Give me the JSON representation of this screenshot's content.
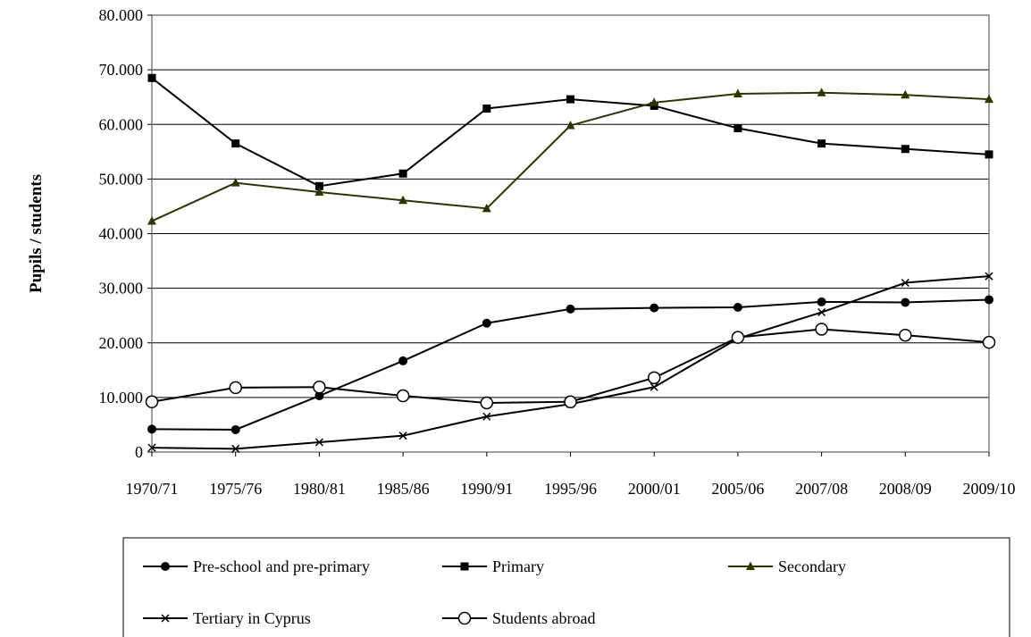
{
  "chart_data": {
    "type": "line",
    "title": "",
    "xlabel": "",
    "ylabel": "Pupils / students",
    "ylim": [
      0,
      80000
    ],
    "yticks": [
      {
        "value": 0,
        "label": "0"
      },
      {
        "value": 10000,
        "label": "10.000"
      },
      {
        "value": 20000,
        "label": "20.000"
      },
      {
        "value": 30000,
        "label": "30.000"
      },
      {
        "value": 40000,
        "label": "40.000"
      },
      {
        "value": 50000,
        "label": "50.000"
      },
      {
        "value": 60000,
        "label": "60.000"
      },
      {
        "value": 70000,
        "label": "70.000"
      },
      {
        "value": 80000,
        "label": "80.000"
      }
    ],
    "categories": [
      "1970/71",
      "1975/76",
      "1980/81",
      "1985/86",
      "1990/91",
      "1995/96",
      "2000/01",
      "2005/06",
      "2007/08",
      "2008/09",
      "2009/10"
    ],
    "grid": true,
    "legend_position": "bottom",
    "series": [
      {
        "name": "Pre-school and pre-primary",
        "marker": "circle-filled",
        "color": "#000000",
        "values": [
          4200,
          4100,
          10300,
          16700,
          23600,
          26200,
          26400,
          26500,
          27500,
          27400,
          27900
        ]
      },
      {
        "name": "Primary",
        "marker": "square",
        "color": "#000000",
        "values": [
          68500,
          56500,
          48700,
          51000,
          62900,
          64600,
          63400,
          59300,
          56500,
          55500,
          54500
        ]
      },
      {
        "name": "Secondary",
        "marker": "triangle",
        "color": "#333300",
        "values": [
          42300,
          49300,
          47600,
          46100,
          44600,
          59800,
          64000,
          65600,
          65800,
          65400,
          64600
        ]
      },
      {
        "name": "Tertiary in Cyprus",
        "marker": "x",
        "color": "#000000",
        "values": [
          800,
          600,
          1800,
          3000,
          6500,
          8800,
          11900,
          20800,
          25600,
          31000,
          32200
        ]
      },
      {
        "name": "Students abroad",
        "marker": "circle-open",
        "color": "#000000",
        "values": [
          9200,
          11800,
          11900,
          10300,
          9000,
          9200,
          13600,
          21000,
          22500,
          21400,
          20100
        ]
      }
    ]
  }
}
